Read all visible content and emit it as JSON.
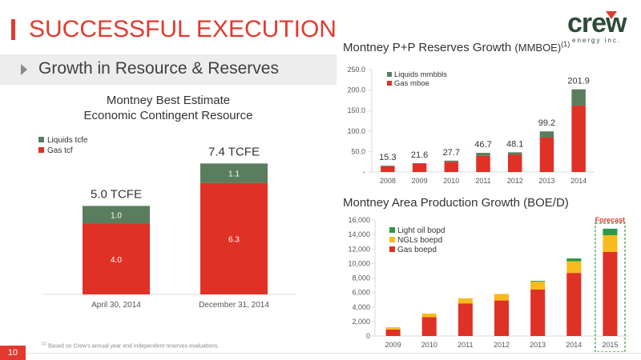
{
  "page": {
    "title": "SUCCESSFUL EXECUTION",
    "section_title": "Growth in Resource & Reserves",
    "footnote_marker": "(1)",
    "footnote": "Based on Crew's annual year end independent reserves evaluations.",
    "page_number": "10"
  },
  "logo": {
    "word": "crew",
    "tagline": "energy inc."
  },
  "colors": {
    "accent": "#e23a2e",
    "gas": "#e03127",
    "liquids": "#5a7d5e",
    "ngl": "#f8bb1d",
    "light_oil": "#2e9a45",
    "axis": "#d9d9d9"
  },
  "chart_data": [
    {
      "id": "contingent-resource",
      "type": "bar",
      "stacked": true,
      "title": "Montney Best Estimate Economic Contingent Resource",
      "title_lines": [
        "Montney Best Estimate",
        "Economic Contingent Resource"
      ],
      "categories": [
        "April 30, 2014",
        "December 31, 2014"
      ],
      "series": [
        {
          "name": "Gas tcf",
          "values": [
            4.0,
            6.3
          ],
          "labels": [
            "4.0",
            "6.3"
          ]
        },
        {
          "name": "Liquids tcfe",
          "values": [
            1.0,
            1.1
          ],
          "labels": [
            "1.0",
            "1.1"
          ]
        }
      ],
      "totals": [
        "5.0 TCFE",
        "7.4 TCFE"
      ],
      "legend": [
        "Liquids tcfe",
        "Gas tcf"
      ],
      "legend_position": "top-left",
      "ylim": [
        0,
        8.5
      ],
      "grid": false
    },
    {
      "id": "reserves-growth",
      "type": "bar",
      "stacked": true,
      "title": "Montney P+P Reserves Growth",
      "unit": "(MMBOE)",
      "title_note": "(1)",
      "categories": [
        "2008",
        "2009",
        "2010",
        "2011",
        "2012",
        "2013",
        "2014"
      ],
      "series": [
        {
          "name": "Gas mboe",
          "values": [
            13.8,
            19.5,
            25.0,
            39.5,
            42.0,
            84.0,
            162.0
          ]
        },
        {
          "name": "Liquids mmbbls",
          "values": [
            1.5,
            2.1,
            2.7,
            7.2,
            6.1,
            15.2,
            39.9
          ]
        }
      ],
      "totals": [
        15.3,
        21.6,
        27.7,
        46.7,
        48.1,
        99.2,
        201.9
      ],
      "total_labels": [
        "15.3",
        "21.6",
        "27.7",
        "46.7",
        "48.1",
        "99.2",
        "201.9"
      ],
      "legend": [
        "Liquids mmbbls",
        "Gas mboe"
      ],
      "legend_position": "top-left",
      "ylim": [
        0,
        250
      ],
      "yticks": [
        "-",
        "50.0",
        "100.0",
        "150.0",
        "200.0",
        "250.0"
      ],
      "grid": false
    },
    {
      "id": "production-growth",
      "type": "bar",
      "stacked": true,
      "title": "Montney Area Production Growth (BOE/D)",
      "categories": [
        "2009",
        "2010",
        "2011",
        "2012",
        "2013",
        "2014",
        "2015"
      ],
      "series": [
        {
          "name": "Gas boepd",
          "values": [
            900,
            2600,
            4500,
            4900,
            6400,
            8700,
            11600
          ]
        },
        {
          "name": "NGLs boepd",
          "values": [
            300,
            500,
            700,
            900,
            1100,
            1600,
            2300
          ]
        },
        {
          "name": "Light oil bopd",
          "values": [
            0,
            0,
            0,
            0,
            100,
            400,
            900
          ]
        }
      ],
      "legend": [
        "Light oil bopd",
        "NGLs boepd",
        "Gas boepd"
      ],
      "legend_position": "top-left",
      "ylim": [
        0,
        16000
      ],
      "yticks": [
        "0",
        "2,000",
        "4,000",
        "6,000",
        "8,000",
        "10,000",
        "12,000",
        "14,000",
        "16,000"
      ],
      "forecast_label": "Forecast",
      "forecast_category": "2015",
      "grid": false
    }
  ]
}
